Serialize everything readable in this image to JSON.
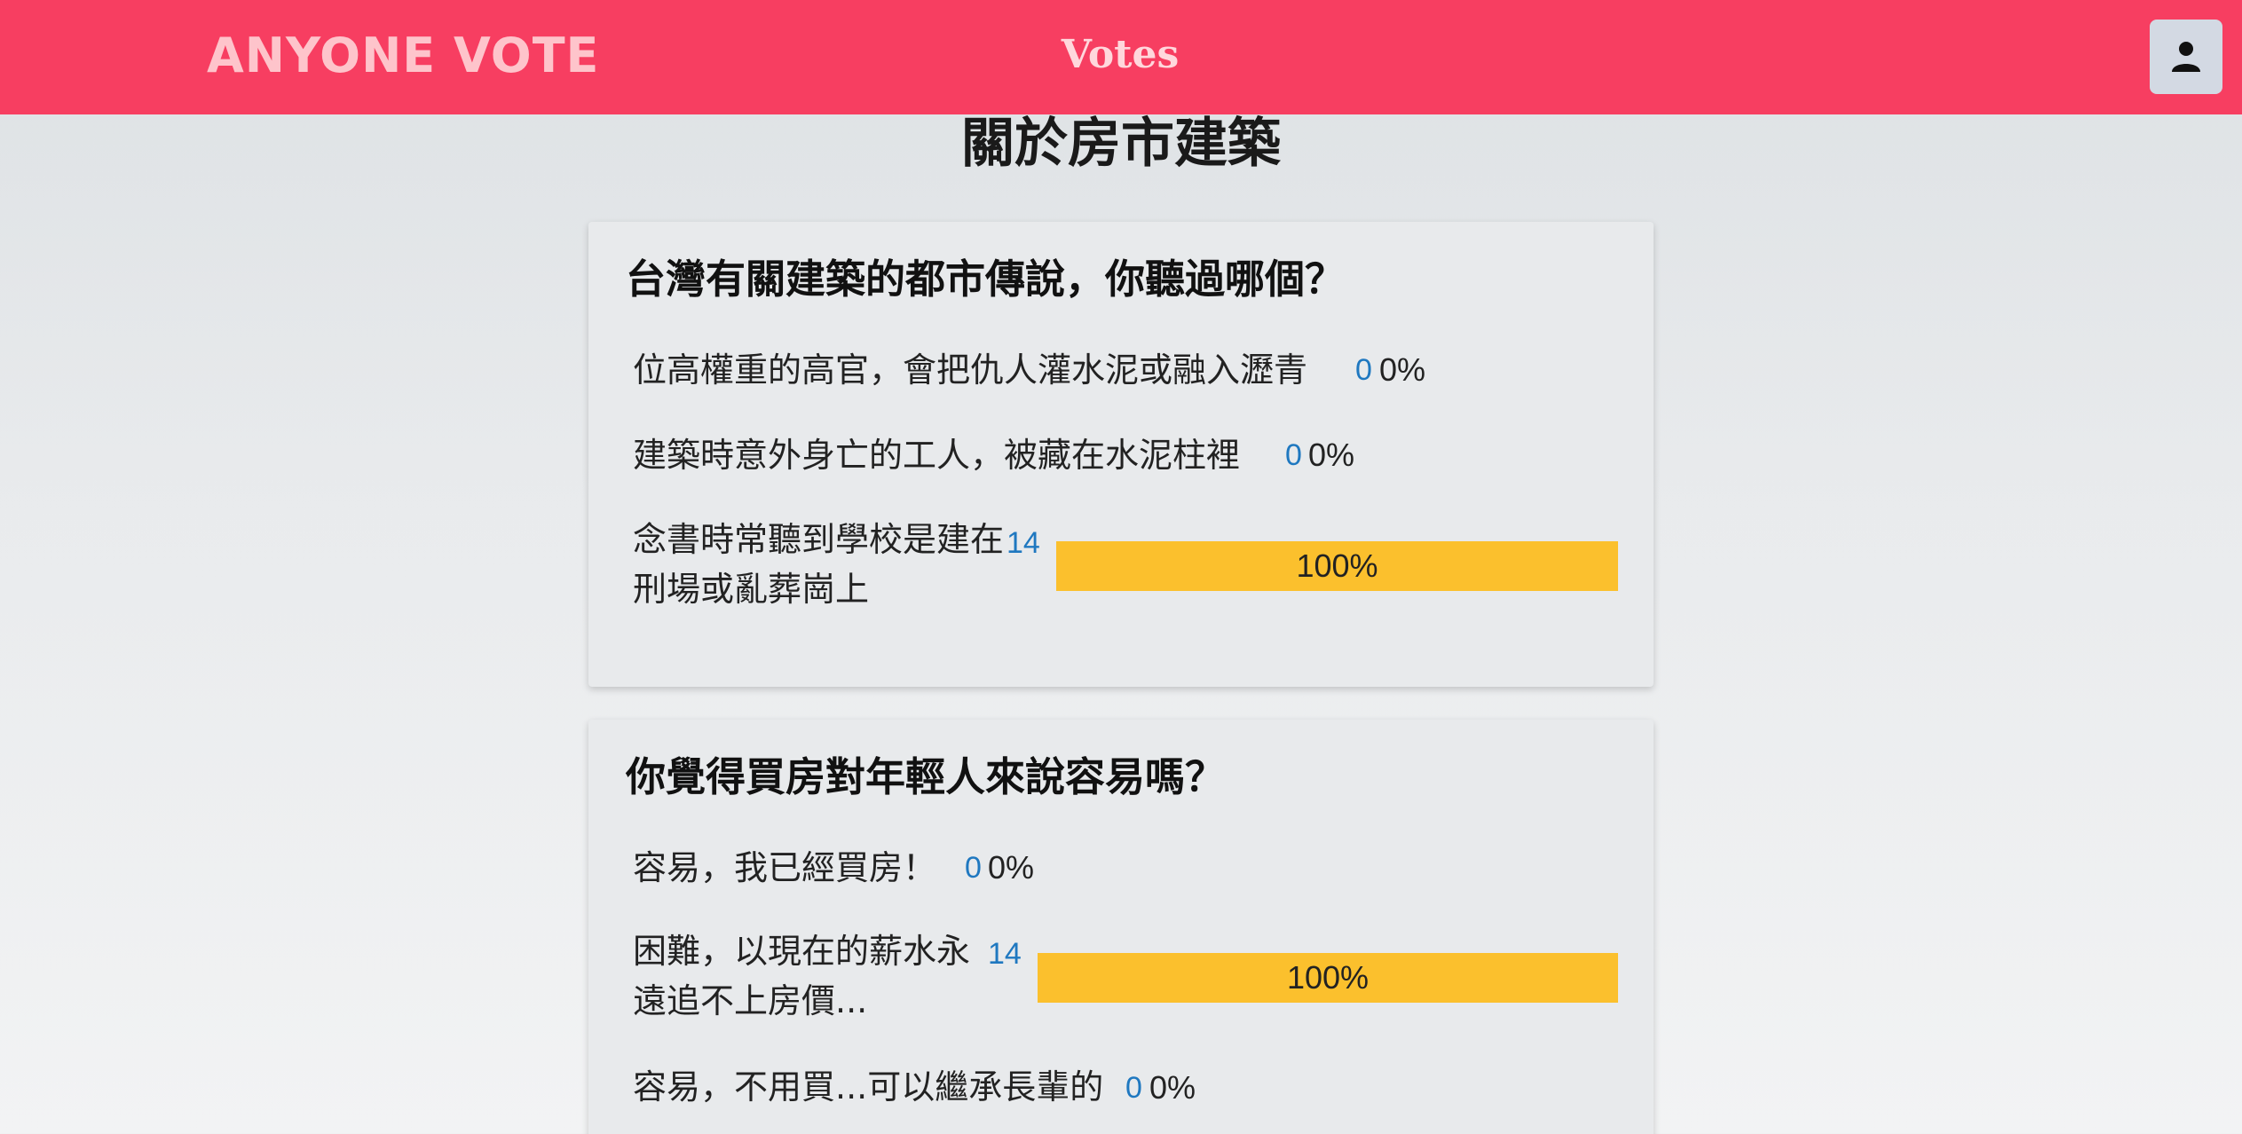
{
  "nav": {
    "brand": "ANYONE VOTE",
    "center": "Votes",
    "user_icon": "person-icon"
  },
  "page": {
    "title": "關於房市建築"
  },
  "polls": [
    {
      "question": "台灣有關建築的都市傳說，你聽過哪個？",
      "options": [
        {
          "text": "位高權重的高官，會把仇人灌水泥或融入瀝青",
          "count": "0",
          "percent": "0%",
          "fraction": 0
        },
        {
          "text": "建築時意外身亡的工人，被藏在水泥柱裡",
          "count": "0",
          "percent": "0%",
          "fraction": 0
        },
        {
          "text": "念書時常聽到學校是建在刑場或亂葬崗上",
          "count": "14",
          "percent": "100%",
          "fraction": 1
        }
      ]
    },
    {
      "question": "你覺得買房對年輕人來說容易嗎？",
      "options": [
        {
          "text": "容易，我已經買房！",
          "count": "0",
          "percent": "0%",
          "fraction": 0
        },
        {
          "text": "困難，以現在的薪水永遠追不上房價...",
          "count": "14",
          "percent": "100%",
          "fraction": 1
        },
        {
          "text": "容易，不用買...可以繼承長輩的",
          "count": "0",
          "percent": "0%",
          "fraction": 0
        }
      ]
    }
  ],
  "colors": {
    "nav_bg": "#f73e61",
    "brand": "#fec4cb",
    "bar": "#fbc02d",
    "count": "#1f78c0"
  }
}
